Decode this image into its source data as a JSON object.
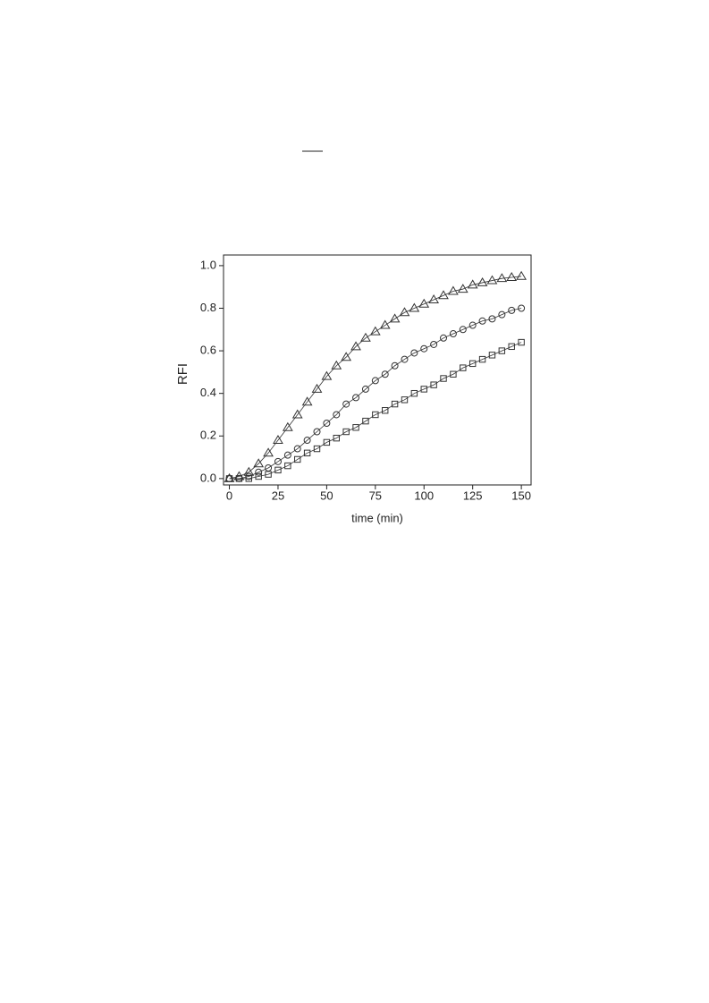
{
  "chart_data": {
    "type": "scatter",
    "xlabel": "time (min)",
    "ylabel": "RFI",
    "x": [
      0,
      5,
      10,
      15,
      20,
      25,
      30,
      35,
      40,
      45,
      50,
      55,
      60,
      65,
      70,
      75,
      80,
      85,
      90,
      95,
      100,
      105,
      110,
      115,
      120,
      125,
      130,
      135,
      140,
      145,
      150
    ],
    "series": [
      {
        "marker": "triangle",
        "color": "#333333",
        "line": true,
        "values": [
          0.0,
          0.01,
          0.03,
          0.07,
          0.12,
          0.18,
          0.24,
          0.3,
          0.36,
          0.42,
          0.48,
          0.53,
          0.57,
          0.62,
          0.66,
          0.69,
          0.72,
          0.75,
          0.78,
          0.8,
          0.82,
          0.84,
          0.86,
          0.88,
          0.89,
          0.91,
          0.92,
          0.93,
          0.94,
          0.945,
          0.95
        ]
      },
      {
        "marker": "circle",
        "color": "#333333",
        "line": true,
        "values": [
          0.0,
          0.0,
          0.01,
          0.03,
          0.05,
          0.08,
          0.11,
          0.14,
          0.18,
          0.22,
          0.26,
          0.3,
          0.35,
          0.38,
          0.42,
          0.46,
          0.49,
          0.53,
          0.56,
          0.59,
          0.61,
          0.63,
          0.66,
          0.68,
          0.7,
          0.72,
          0.74,
          0.75,
          0.77,
          0.79,
          0.8
        ]
      },
      {
        "marker": "square",
        "color": "#333333",
        "line": true,
        "values": [
          0.0,
          0.0,
          0.0,
          0.01,
          0.02,
          0.04,
          0.06,
          0.09,
          0.12,
          0.14,
          0.17,
          0.19,
          0.22,
          0.24,
          0.27,
          0.3,
          0.32,
          0.35,
          0.37,
          0.4,
          0.42,
          0.44,
          0.47,
          0.49,
          0.52,
          0.54,
          0.56,
          0.58,
          0.6,
          0.62,
          0.64
        ]
      }
    ],
    "xlim": [
      -3,
      155
    ],
    "xticks": [
      0,
      25,
      50,
      75,
      100,
      125,
      150
    ],
    "ylim": [
      -0.03,
      1.05
    ],
    "yticks": [
      {
        "value": 0,
        "label": "0.0"
      },
      0.2,
      0.4,
      0.6,
      0.8,
      {
        "value": 1,
        "label": "1.0"
      }
    ]
  }
}
